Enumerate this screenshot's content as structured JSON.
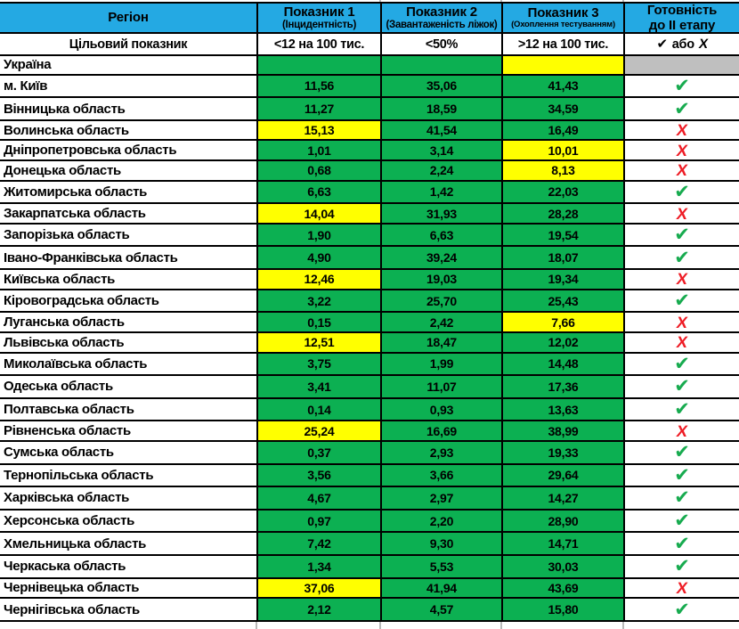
{
  "colors": {
    "header_blue": "#24a9e3",
    "cell_green": "#0cb052",
    "cell_yellow": "#ffff00",
    "cell_gray": "#bfbfbf",
    "check_green": "#17ab4f",
    "x_red": "#ee1c25"
  },
  "icons": {
    "check": "✔",
    "x": "Х"
  },
  "table": {
    "header": {
      "region": "Регіон",
      "ind1_title": "Показник 1",
      "ind1_sub": "(Інцидентність)",
      "ind2_title": "Показник 2",
      "ind2_sub": "(Завантаженість ліжок)",
      "ind3_title": "Показник 3",
      "ind3_sub": "(Охоплення тестуванням)",
      "ready_line1": "Готовність",
      "ready_line2": "до II етапу"
    },
    "target_row": {
      "label": "Цільовий показник",
      "ind1": "<12 на 100 тис.",
      "ind2": "<50%",
      "ind3": ">12 на 100 тис.",
      "ready_or": "або"
    },
    "rows": [
      {
        "region": "Україна",
        "v1": "",
        "c1": "green",
        "v2": "",
        "c2": "green",
        "v3": "",
        "c3": "yellow",
        "ready": "none",
        "rbg": "gray"
      },
      {
        "region": "м. Київ",
        "v1": "11,56",
        "c1": "green",
        "v2": "35,06",
        "c2": "green",
        "v3": "41,43",
        "c3": "green",
        "ready": "check",
        "rbg": "white"
      },
      {
        "region": "Вінницька область",
        "v1": "11,27",
        "c1": "green",
        "v2": "18,59",
        "c2": "green",
        "v3": "34,59",
        "c3": "green",
        "ready": "check",
        "rbg": "white"
      },
      {
        "region": "Волинська область",
        "v1": "15,13",
        "c1": "yellow",
        "v2": "41,54",
        "c2": "green",
        "v3": "16,49",
        "c3": "green",
        "ready": "x",
        "rbg": "white"
      },
      {
        "region": "Дніпропетровська область",
        "v1": "1,01",
        "c1": "green",
        "v2": "3,14",
        "c2": "green",
        "v3": "10,01",
        "c3": "yellow",
        "ready": "x",
        "rbg": "white"
      },
      {
        "region": "Донецька область",
        "v1": "0,68",
        "c1": "green",
        "v2": "2,24",
        "c2": "green",
        "v3": "8,13",
        "c3": "yellow",
        "ready": "x",
        "rbg": "white"
      },
      {
        "region": "Житомирська область",
        "v1": "6,63",
        "c1": "green",
        "v2": "1,42",
        "c2": "green",
        "v3": "22,03",
        "c3": "green",
        "ready": "check",
        "rbg": "white"
      },
      {
        "region": "Закарпатська область",
        "v1": "14,04",
        "c1": "yellow",
        "v2": "31,93",
        "c2": "green",
        "v3": "28,28",
        "c3": "green",
        "ready": "x",
        "rbg": "white"
      },
      {
        "region": "Запорізька область",
        "v1": "1,90",
        "c1": "green",
        "v2": "6,63",
        "c2": "green",
        "v3": "19,54",
        "c3": "green",
        "ready": "check",
        "rbg": "white"
      },
      {
        "region": "Івано-Франківська область",
        "v1": "4,90",
        "c1": "green",
        "v2": "39,24",
        "c2": "green",
        "v3": "18,07",
        "c3": "green",
        "ready": "check",
        "rbg": "white"
      },
      {
        "region": "Київська область",
        "v1": "12,46",
        "c1": "yellow",
        "v2": "19,03",
        "c2": "green",
        "v3": "19,34",
        "c3": "green",
        "ready": "x",
        "rbg": "white"
      },
      {
        "region": "Кіровоградська область",
        "v1": "3,22",
        "c1": "green",
        "v2": "25,70",
        "c2": "green",
        "v3": "25,43",
        "c3": "green",
        "ready": "check",
        "rbg": "white"
      },
      {
        "region": "Луганська область",
        "v1": "0,15",
        "c1": "green",
        "v2": "2,42",
        "c2": "green",
        "v3": "7,66",
        "c3": "yellow",
        "ready": "x",
        "rbg": "white"
      },
      {
        "region": "Львівська область",
        "v1": "12,51",
        "c1": "yellow",
        "v2": "18,47",
        "c2": "green",
        "v3": "12,02",
        "c3": "green",
        "ready": "x",
        "rbg": "white"
      },
      {
        "region": "Миколаївська область",
        "v1": "3,75",
        "c1": "green",
        "v2": "1,99",
        "c2": "green",
        "v3": "14,48",
        "c3": "green",
        "ready": "check",
        "rbg": "white"
      },
      {
        "region": "Одеська область",
        "v1": "3,41",
        "c1": "green",
        "v2": "11,07",
        "c2": "green",
        "v3": "17,36",
        "c3": "green",
        "ready": "check",
        "rbg": "white"
      },
      {
        "region": "Полтавська область",
        "v1": "0,14",
        "c1": "green",
        "v2": "0,93",
        "c2": "green",
        "v3": "13,63",
        "c3": "green",
        "ready": "check",
        "rbg": "white"
      },
      {
        "region": "Рівненська область",
        "v1": "25,24",
        "c1": "yellow",
        "v2": "16,69",
        "c2": "green",
        "v3": "38,99",
        "c3": "green",
        "ready": "x",
        "rbg": "white"
      },
      {
        "region": "Сумська область",
        "v1": "0,37",
        "c1": "green",
        "v2": "2,93",
        "c2": "green",
        "v3": "19,33",
        "c3": "green",
        "ready": "check",
        "rbg": "white"
      },
      {
        "region": "Тернопільська область",
        "v1": "3,56",
        "c1": "green",
        "v2": "3,66",
        "c2": "green",
        "v3": "29,64",
        "c3": "green",
        "ready": "check",
        "rbg": "white"
      },
      {
        "region": "Харківська область",
        "v1": "4,67",
        "c1": "green",
        "v2": "2,97",
        "c2": "green",
        "v3": "14,27",
        "c3": "green",
        "ready": "check",
        "rbg": "white"
      },
      {
        "region": "Херсонська область",
        "v1": "0,97",
        "c1": "green",
        "v2": "2,20",
        "c2": "green",
        "v3": "28,90",
        "c3": "green",
        "ready": "check",
        "rbg": "white"
      },
      {
        "region": "Хмельницька область",
        "v1": "7,42",
        "c1": "green",
        "v2": "9,30",
        "c2": "green",
        "v3": "14,71",
        "c3": "green",
        "ready": "check",
        "rbg": "white"
      },
      {
        "region": "Черкаська область",
        "v1": "1,34",
        "c1": "green",
        "v2": "5,53",
        "c2": "green",
        "v3": "30,03",
        "c3": "green",
        "ready": "check",
        "rbg": "white"
      },
      {
        "region": "Чернівецька область",
        "v1": "37,06",
        "c1": "yellow",
        "v2": "41,94",
        "c2": "green",
        "v3": "43,69",
        "c3": "green",
        "ready": "x",
        "rbg": "white"
      },
      {
        "region": "Чернігівська область",
        "v1": "2,12",
        "c1": "green",
        "v2": "4,57",
        "c2": "green",
        "v3": "15,80",
        "c3": "green",
        "ready": "check",
        "rbg": "white"
      }
    ]
  }
}
